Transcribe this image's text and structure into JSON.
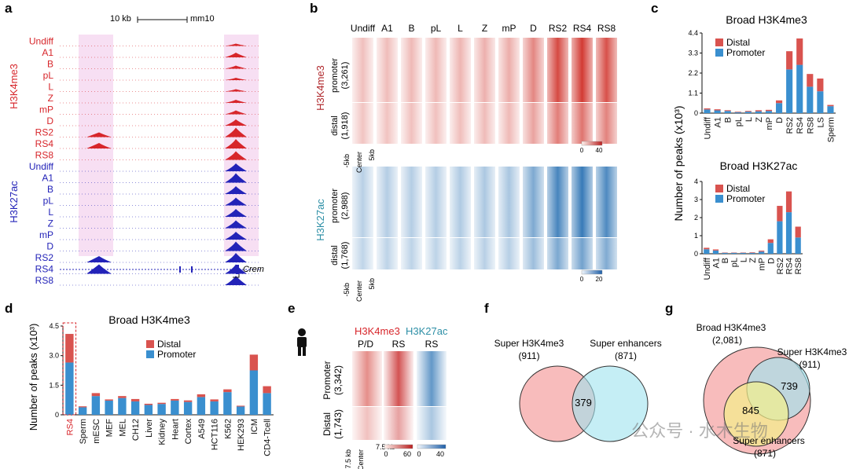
{
  "colors": {
    "red": "#d7262b",
    "blue": "#2323b8",
    "promoter": "#3a8fcf",
    "distal": "#d9534f",
    "pinkband": "#f7dff3",
    "heat_red": "#d0322a",
    "heat_blue": "#2f75b5"
  },
  "panels": {
    "a": "a",
    "b": "b",
    "c": "c",
    "d": "d",
    "e": "e",
    "f": "f",
    "g": "g"
  },
  "panel_a": {
    "scale_label": "10 kb",
    "genome": "mm10",
    "gene": "Crem",
    "group1": "H3K4me3",
    "group2": "H3K27ac",
    "tracks1": [
      "Undiff",
      "A1",
      "B",
      "pL",
      "L",
      "Z",
      "mP",
      "D",
      "RS2",
      "RS4",
      "RS8"
    ],
    "tracks2": [
      "Undiff",
      "A1",
      "B",
      "pL",
      "L",
      "Z",
      "mP",
      "D",
      "RS2",
      "RS4",
      "RS8"
    ]
  },
  "panel_b": {
    "columns": [
      "Undiff",
      "A1",
      "B",
      "pL",
      "L",
      "Z",
      "mP",
      "D",
      "RS2",
      "RS4",
      "RS8"
    ],
    "top_label": "H3K4me3",
    "bottom_label": "H3K27ac",
    "top_promoter": "promoter",
    "top_promoter_n": "(3,261)",
    "top_distal": "distal",
    "top_distal_n": "(1,918)",
    "bot_promoter": "promoter",
    "bot_promoter_n": "(2,988)",
    "bot_distal": "distal",
    "bot_distal_n": "(1,768)",
    "axis_left": "-5kb",
    "axis_center": "Center",
    "axis_right": "5kb",
    "scale_top": [
      "0",
      "40"
    ],
    "scale_bottom": [
      "0",
      "20"
    ]
  },
  "chart_data": [
    {
      "type": "bar",
      "panel": "c-top",
      "title": "Broad H3K4me3",
      "categories": [
        "Undiff",
        "A1",
        "B",
        "pL",
        "L",
        "Z",
        "mP",
        "D",
        "RS2",
        "RS4",
        "RS8",
        "LS",
        "Sperm"
      ],
      "series": [
        {
          "name": "Promoter",
          "values": [
            0.2,
            0.15,
            0.12,
            0.05,
            0.08,
            0.1,
            0.12,
            0.55,
            2.4,
            2.65,
            1.45,
            1.2,
            0.38
          ]
        },
        {
          "name": "Distal",
          "values": [
            0.06,
            0.06,
            0.04,
            0.03,
            0.04,
            0.06,
            0.06,
            0.15,
            1.0,
            1.45,
            0.7,
            0.7,
            0.07
          ]
        }
      ],
      "ylim": [
        0,
        4.4
      ],
      "yticks": [
        "0",
        "1.1",
        "2.2",
        "3.3",
        "4.4"
      ]
    },
    {
      "type": "bar",
      "panel": "c-bottom",
      "title": "Broad H3K27ac",
      "categories": [
        "Undiff",
        "A1",
        "B",
        "pL",
        "L",
        "Z",
        "mP",
        "D",
        "RS2",
        "RS4",
        "RS8"
      ],
      "series": [
        {
          "name": "Promoter",
          "values": [
            0.25,
            0.18,
            0.05,
            0.05,
            0.05,
            0.05,
            0.12,
            0.6,
            1.8,
            2.3,
            0.9
          ]
        },
        {
          "name": "Distal",
          "values": [
            0.08,
            0.06,
            0.02,
            0.02,
            0.02,
            0.03,
            0.05,
            0.2,
            0.85,
            1.15,
            0.6
          ]
        }
      ],
      "ylim": [
        0,
        4
      ],
      "yticks": [
        "0",
        "1",
        "2",
        "3",
        "4"
      ]
    },
    {
      "type": "bar",
      "panel": "d",
      "title": "Broad H3K4me3",
      "categories": [
        "RS4",
        "Sperm",
        "mESC",
        "MEF",
        "MEL",
        "CH12",
        "Liver",
        "Kidney",
        "Heart",
        "Cortex",
        "A549",
        "HCT116",
        "K562",
        "HEK293",
        "ICM",
        "CD4-Tcell"
      ],
      "series": [
        {
          "name": "Promoter",
          "values": [
            2.65,
            0.38,
            0.95,
            0.72,
            0.85,
            0.68,
            0.5,
            0.55,
            0.72,
            0.65,
            0.9,
            0.68,
            1.15,
            0.42,
            2.25,
            1.1
          ]
        },
        {
          "name": "Distal",
          "values": [
            1.45,
            0.05,
            0.15,
            0.06,
            0.1,
            0.12,
            0.06,
            0.06,
            0.08,
            0.08,
            0.14,
            0.1,
            0.14,
            0.04,
            0.8,
            0.35
          ]
        }
      ],
      "ylim": [
        0,
        4.5
      ],
      "yticks": [
        "0",
        "1.5",
        "3.0",
        "4.5"
      ]
    }
  ],
  "shared": {
    "ylabel": "Number of peaks (x10³)",
    "legend_distal": "Distal",
    "legend_promoter": "Promoter"
  },
  "panel_e": {
    "label_me3": "H3K4me3",
    "label_ac": "H3K27ac",
    "col1": "P/D",
    "col2": "RS",
    "col3": "RS",
    "promoter": "Promoter",
    "promoter_n": "(3,342)",
    "distal": "Distal",
    "distal_n": "(1,743)",
    "axis_left": "-7.5 kb",
    "axis_center": "Center",
    "axis_right": "7.5 kb",
    "scale_red": [
      "0",
      "60"
    ],
    "scale_blue": [
      "0",
      "40"
    ]
  },
  "panel_f": {
    "left": "Super H3K4me3",
    "left_n": "(911)",
    "right": "Super enhancers",
    "right_n": "(871)",
    "overlap": "379"
  },
  "panel_g": {
    "big": "Broad H3K4me3",
    "big_n": "(2,081)",
    "mid": "Super H3K4me3",
    "mid_n": "(911)",
    "small": "Super enhancers",
    "small_n": "(871)",
    "o1": "739",
    "o2": "845"
  },
  "watermark": "公众号 · 水木生物"
}
